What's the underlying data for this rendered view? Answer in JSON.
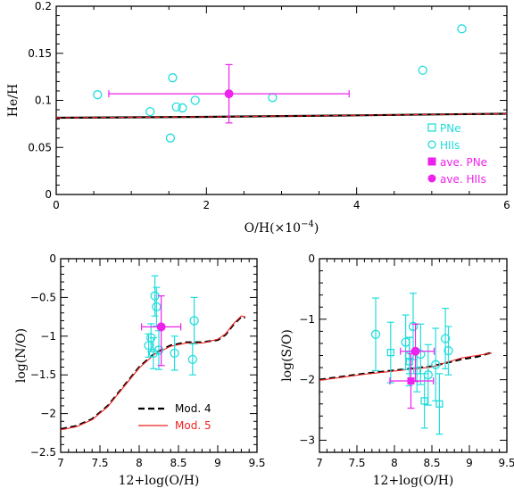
{
  "colors": {
    "cyan": "#22dddd",
    "magenta": "#ee22ee",
    "black": "#000000",
    "red": "#ee2222"
  },
  "chart_data": [
    {
      "id": "top",
      "type": "scatter",
      "xlabel": "O/H(×10",
      "xlabel_sup": "−4",
      "xlabel_end": ")",
      "ylabel": "He/H",
      "xlim": [
        0,
        6
      ],
      "ylim": [
        0,
        0.2
      ],
      "xticks": [
        0,
        2,
        4,
        6
      ],
      "xtick_labels": [
        "0",
        "2",
        "4",
        "6"
      ],
      "yticks": [
        0,
        0.05,
        0.1,
        0.15,
        0.2
      ],
      "ytick_labels": [
        "0",
        "0.05",
        "0.1",
        "0.15",
        "0.2"
      ],
      "hiis": [
        [
          0.55,
          0.106
        ],
        [
          1.25,
          0.088
        ],
        [
          1.55,
          0.124
        ],
        [
          1.6,
          0.093
        ],
        [
          1.68,
          0.092
        ],
        [
          1.85,
          0.1
        ],
        [
          1.52,
          0.06
        ],
        [
          2.88,
          0.103
        ],
        [
          4.88,
          0.132
        ],
        [
          5.4,
          0.176
        ]
      ],
      "ave_hiis": {
        "x": 2.3,
        "y": 0.107,
        "xerr": [
          1.6,
          1.6
        ],
        "yerr": [
          0.031,
          0.031
        ]
      },
      "model_line": [
        [
          0,
          0.0815
        ],
        [
          1,
          0.082
        ],
        [
          2,
          0.0825
        ],
        [
          3,
          0.0833
        ],
        [
          4,
          0.0841
        ],
        [
          5,
          0.085
        ],
        [
          6,
          0.0858
        ]
      ],
      "legend": [
        {
          "marker": "square-open",
          "label": "PNe",
          "color": "#22dddd"
        },
        {
          "marker": "circle-open",
          "label": "HIIs",
          "color": "#22dddd"
        },
        {
          "marker": "square-filled",
          "label": "ave. PNe",
          "color": "#ee22ee"
        },
        {
          "marker": "circle-filled",
          "label": "ave. HIIs",
          "color": "#ee22ee"
        }
      ]
    },
    {
      "id": "bottom-left",
      "type": "scatter",
      "xlabel": "12+log(O/H)",
      "ylabel": "log(N/O)",
      "xlim": [
        7,
        9.5
      ],
      "ylim": [
        -2.5,
        0
      ],
      "xticks": [
        7,
        7.5,
        8,
        8.5,
        9,
        9.5
      ],
      "xtick_labels": [
        "7",
        "7.5",
        "8",
        "8.5",
        "9",
        "9.5"
      ],
      "yticks": [
        -2.5,
        -2,
        -1.5,
        -1,
        -0.5,
        0
      ],
      "ytick_labels": [
        "−2.5",
        "−2",
        "−1.5",
        "−1",
        "−0.5",
        "0"
      ],
      "hiis": [
        {
          "x": 8.15,
          "y": -1.02,
          "err": 0.18
        },
        {
          "x": 8.2,
          "y": -0.48,
          "err": 0.26
        },
        {
          "x": 8.22,
          "y": -0.62,
          "err": 0.25
        },
        {
          "x": 8.18,
          "y": -1.22,
          "err": 0.2
        },
        {
          "x": 8.25,
          "y": -1.18,
          "err": 0.25
        },
        {
          "x": 8.45,
          "y": -1.22,
          "err": 0.22
        },
        {
          "x": 8.7,
          "y": -0.8,
          "err": 0.3
        },
        {
          "x": 8.68,
          "y": -1.3,
          "err": 0.2
        },
        {
          "x": 8.12,
          "y": -1.12,
          "err": 0.15
        }
      ],
      "ave_hiis": {
        "x": 8.28,
        "y": -0.88,
        "xerr": [
          0.25,
          0.25
        ],
        "yerr": [
          0.5,
          0.4
        ]
      },
      "mod4": [
        [
          7,
          -2.2
        ],
        [
          7.2,
          -2.16
        ],
        [
          7.4,
          -2.07
        ],
        [
          7.6,
          -1.9
        ],
        [
          7.8,
          -1.65
        ],
        [
          8.0,
          -1.4
        ],
        [
          8.2,
          -1.22
        ],
        [
          8.4,
          -1.12
        ],
        [
          8.6,
          -1.08
        ],
        [
          8.8,
          -1.08
        ],
        [
          9.0,
          -1.05
        ],
        [
          9.1,
          -0.98
        ],
        [
          9.2,
          -0.85
        ],
        [
          9.3,
          -0.75
        ],
        [
          9.35,
          -0.76
        ]
      ],
      "mod5": [
        [
          7,
          -2.21
        ],
        [
          7.2,
          -2.17
        ],
        [
          7.4,
          -2.08
        ],
        [
          7.6,
          -1.91
        ],
        [
          7.8,
          -1.66
        ],
        [
          8.0,
          -1.41
        ],
        [
          8.2,
          -1.23
        ],
        [
          8.4,
          -1.13
        ],
        [
          8.6,
          -1.09
        ],
        [
          8.8,
          -1.09
        ],
        [
          9.0,
          -1.04
        ],
        [
          9.1,
          -0.97
        ],
        [
          9.2,
          -0.84
        ],
        [
          9.3,
          -0.74
        ],
        [
          9.35,
          -0.75
        ]
      ],
      "legend": [
        {
          "style": "dashed",
          "label": "Mod. 4",
          "color": "#000000"
        },
        {
          "style": "solid",
          "label": "Mod. 5",
          "color": "#ee2222"
        }
      ]
    },
    {
      "id": "bottom-right",
      "type": "scatter",
      "xlabel": "12+log(O/H)",
      "ylabel": "log(S/O)",
      "xlim": [
        7,
        9.5
      ],
      "ylim": [
        -3.2,
        0
      ],
      "xticks": [
        7,
        7.5,
        8,
        8.5,
        9,
        9.5
      ],
      "xtick_labels": [
        "7",
        "7.5",
        "8",
        "8.5",
        "9",
        "9.5"
      ],
      "yticks": [
        -3,
        -2,
        -1,
        0
      ],
      "ytick_labels": [
        "−3",
        "−2",
        "−1",
        "0"
      ],
      "hiis": [
        {
          "x": 7.75,
          "y": -1.25,
          "err": 0.6
        },
        {
          "x": 8.15,
          "y": -1.38,
          "err": 0.45
        },
        {
          "x": 8.25,
          "y": -1.12,
          "err": 0.55
        },
        {
          "x": 8.35,
          "y": -1.58,
          "err": 0.5
        },
        {
          "x": 8.45,
          "y": -1.92,
          "err": 0.5
        },
        {
          "x": 8.55,
          "y": -1.75,
          "err": 0.6
        },
        {
          "x": 8.68,
          "y": -1.32,
          "err": 0.5
        },
        {
          "x": 8.72,
          "y": -1.52,
          "err": 0.4
        },
        {
          "x": 8.2,
          "y": -1.6,
          "err": 0.3
        }
      ],
      "pne": [
        {
          "x": 7.95,
          "y": -1.55,
          "err": 0.5
        },
        {
          "x": 8.2,
          "y": -1.7,
          "err": 0.4
        },
        {
          "x": 8.4,
          "y": -2.35,
          "err": 0.45
        },
        {
          "x": 8.6,
          "y": -2.4,
          "err": 0.5
        },
        {
          "x": 8.3,
          "y": -1.85,
          "err": 0.35
        }
      ],
      "ave_pne": {
        "x": 8.22,
        "y": -2.02,
        "xerr": [
          0.28,
          0.3
        ],
        "yerr": [
          0.45,
          0.45
        ]
      },
      "ave_hiis": {
        "x": 8.28,
        "y": -1.53,
        "xerr": [
          0.2,
          0.25
        ],
        "yerr": [
          0.5,
          0.45
        ]
      },
      "mod4": [
        [
          7,
          -2.0
        ],
        [
          7.3,
          -1.95
        ],
        [
          7.6,
          -1.9
        ],
        [
          7.9,
          -1.86
        ],
        [
          8.2,
          -1.82
        ],
        [
          8.5,
          -1.78
        ],
        [
          8.7,
          -1.72
        ],
        [
          8.9,
          -1.66
        ],
        [
          9.1,
          -1.62
        ],
        [
          9.3,
          -1.55
        ]
      ],
      "mod5": [
        [
          7,
          -2.01
        ],
        [
          7.3,
          -1.96
        ],
        [
          7.6,
          -1.91
        ],
        [
          7.9,
          -1.87
        ],
        [
          8.2,
          -1.83
        ],
        [
          8.5,
          -1.79
        ],
        [
          8.7,
          -1.71
        ],
        [
          8.9,
          -1.64
        ],
        [
          9.1,
          -1.6
        ],
        [
          9.3,
          -1.56
        ]
      ]
    }
  ]
}
